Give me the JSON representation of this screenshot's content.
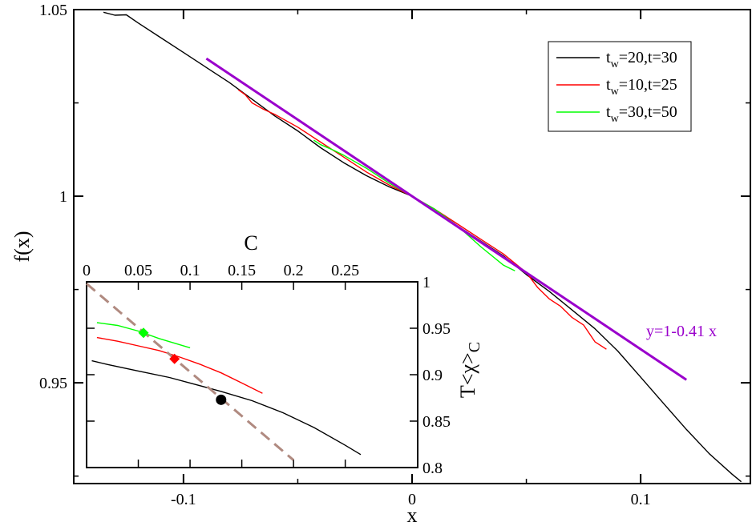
{
  "chart_data": [
    {
      "type": "line",
      "title": "",
      "xlabel": "x",
      "ylabel": "f(x)",
      "xlim": [
        -0.148,
        0.148
      ],
      "ylim": [
        0.923,
        1.05
      ],
      "xticks": [
        -0.1,
        0,
        0.1
      ],
      "xtick_labels": [
        "-0.1",
        "0",
        "0.1"
      ],
      "yticks": [
        0.95,
        1,
        1.05
      ],
      "ytick_labels": [
        "0.95",
        "1",
        "1.05"
      ],
      "legend_position": "top-right",
      "series": [
        {
          "name": "t_w=20,t=30",
          "legend_main": "t",
          "legend_sub": "w",
          "legend_rest": "=20,t=30",
          "color": "#000000",
          "x": [
            -0.135,
            -0.13,
            -0.125,
            -0.12,
            -0.11,
            -0.1,
            -0.09,
            -0.08,
            -0.07,
            -0.06,
            -0.05,
            -0.04,
            -0.03,
            -0.02,
            -0.01,
            0,
            0.01,
            0.02,
            0.03,
            0.04,
            0.05,
            0.06,
            0.07,
            0.08,
            0.09,
            0.1,
            0.11,
            0.12,
            0.13,
            0.14,
            0.144
          ],
          "y": [
            1.0493,
            1.0485,
            1.0486,
            1.0465,
            1.0425,
            1.0385,
            1.0345,
            1.0305,
            1.026,
            1.0215,
            1.0175,
            1.013,
            1.009,
            1.0055,
            1.0025,
            1.0,
            0.996,
            0.992,
            0.988,
            0.984,
            0.979,
            0.9745,
            0.9695,
            0.9645,
            0.9585,
            0.9515,
            0.9445,
            0.9375,
            0.931,
            0.9255,
            0.9235
          ]
        },
        {
          "name": "t_w=10,t=25",
          "legend_main": "t",
          "legend_sub": "w",
          "legend_rest": "=10,t=25",
          "color": "#ff0000",
          "x": [
            -0.076,
            -0.073,
            -0.07,
            -0.065,
            -0.06,
            -0.05,
            -0.04,
            -0.03,
            -0.02,
            -0.01,
            0,
            0.01,
            0.02,
            0.03,
            0.04,
            0.05,
            0.055,
            0.06,
            0.065,
            0.07,
            0.075,
            0.08,
            0.085
          ],
          "y": [
            1.0285,
            1.0272,
            1.025,
            1.0233,
            1.0219,
            1.0185,
            1.0145,
            1.0105,
            1.0065,
            1.003,
            1.0,
            0.9965,
            0.9925,
            0.9885,
            0.9845,
            0.9795,
            0.9755,
            0.9725,
            0.9705,
            0.9675,
            0.9655,
            0.961,
            0.959
          ]
        },
        {
          "name": "t_w=30,t=50",
          "legend_main": "t",
          "legend_sub": "w",
          "legend_rest": "=30,t=50",
          "color": "#00ff00",
          "x": [
            -0.043,
            -0.04,
            -0.035,
            -0.03,
            -0.02,
            -0.01,
            0,
            0.01,
            0.02,
            0.03,
            0.04,
            0.045
          ],
          "y": [
            1.015,
            1.0138,
            1.0125,
            1.011,
            1.0075,
            1.0035,
            1.0,
            0.9965,
            0.992,
            0.9865,
            0.9815,
            0.98
          ]
        },
        {
          "name": "y=1-0.41 x",
          "color": "#9a00cc",
          "annotation": "y=1-0.41 x",
          "x": [
            -0.09,
            0.12
          ],
          "y": [
            1.0369,
            0.9508
          ]
        }
      ]
    },
    {
      "type": "line",
      "title": "",
      "xlabel": "C",
      "ylabel_main": "T",
      "ylabel_chi": "χ",
      "ylabel_sub": "C",
      "xlim": [
        0,
        0.32
      ],
      "ylim": [
        0.8,
        1.0
      ],
      "xaxis_position": "top",
      "yaxis_position": "right",
      "xticks": [
        0,
        0.05,
        0.1,
        0.15,
        0.2,
        0.25
      ],
      "xtick_labels": [
        "0",
        "0.05",
        "0.1",
        "0.15",
        "0.2",
        "0.25"
      ],
      "yticks": [
        0.8,
        0.85,
        0.9,
        0.95,
        1.0
      ],
      "ytick_labels": [
        "0.8",
        "0.85",
        "0.9",
        "0.95",
        "1"
      ],
      "series": [
        {
          "name": "t_w=20,t=30",
          "color": "#000000",
          "x": [
            0.005,
            0.02,
            0.05,
            0.08,
            0.1,
            0.13,
            0.16,
            0.19,
            0.22,
            0.25,
            0.265
          ],
          "y": [
            0.915,
            0.911,
            0.904,
            0.897,
            0.891,
            0.882,
            0.872,
            0.859,
            0.843,
            0.824,
            0.814
          ]
        },
        {
          "name": "t_w=10,t=25",
          "color": "#ff0000",
          "x": [
            0.01,
            0.03,
            0.05,
            0.07,
            0.09,
            0.11,
            0.13,
            0.15,
            0.17
          ],
          "y": [
            0.94,
            0.936,
            0.931,
            0.926,
            0.919,
            0.911,
            0.902,
            0.891,
            0.88
          ]
        },
        {
          "name": "t_w=30,t=50",
          "color": "#00ff00",
          "x": [
            0.01,
            0.03,
            0.05,
            0.07,
            0.1
          ],
          "y": [
            0.956,
            0.953,
            0.947,
            0.939,
            0.929
          ]
        },
        {
          "name": "slope line",
          "color": "#b08a80",
          "dashed": true,
          "x": [
            0,
            0.2
          ],
          "y": [
            0.998,
            0.808
          ]
        }
      ],
      "markers": [
        {
          "shape": "diamond",
          "color": "#00ff00",
          "x": 0.055,
          "y": 0.945
        },
        {
          "shape": "diamond",
          "color": "#ff0000",
          "x": 0.085,
          "y": 0.917
        },
        {
          "shape": "circle",
          "color": "#000000",
          "x": 0.13,
          "y": 0.873
        }
      ]
    }
  ]
}
